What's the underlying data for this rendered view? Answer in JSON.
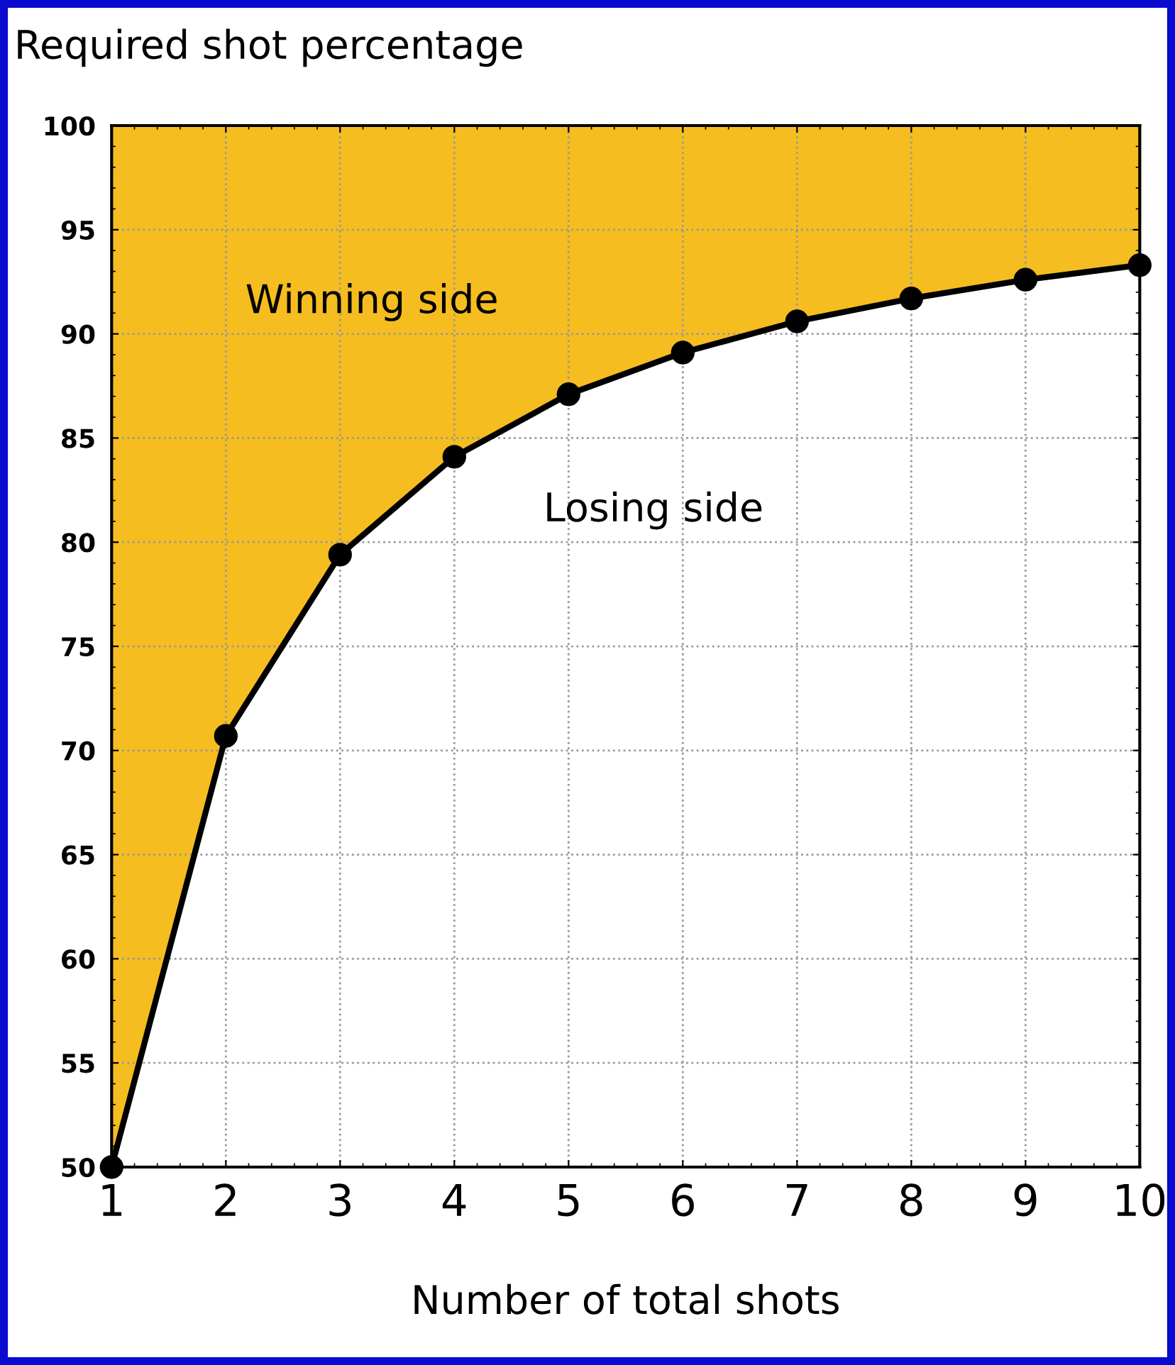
{
  "chart_data": {
    "type": "line",
    "ylabel": "Required shot percentage",
    "xlabel": "Number of total shots",
    "x": [
      1,
      2,
      3,
      4,
      5,
      6,
      7,
      8,
      9,
      10
    ],
    "series": [
      {
        "color": "#000000",
        "colors": [
          "#f5bd1f",
          "#f5bd1f",
          "#f5bd1f",
          "#f5bd1f",
          "#f5bd1f",
          "#f5bd1f",
          "#f5bd1f",
          "#f5bd1f",
          "#f5bd1f",
          "#f5bd1f"
        ],
        "marker": "circle",
        "values": [
          50.0,
          70.7,
          79.4,
          84.1,
          87.1,
          89.1,
          90.6,
          91.7,
          92.6,
          93.3
        ],
        "lower": [
          50.0,
          70.7,
          79.4,
          84.1,
          87.1,
          89.1,
          90.6,
          91.7,
          92.6,
          93.3
        ],
        "upper": [
          100,
          100,
          100,
          100,
          100,
          100,
          100,
          100,
          100,
          100
        ]
      }
    ],
    "xlim": [
      1,
      10
    ],
    "ylim": [
      50,
      100
    ],
    "xticks": [
      1,
      2,
      3,
      4,
      5,
      6,
      7,
      8,
      9,
      10
    ],
    "yticks": [
      50,
      55,
      60,
      65,
      70,
      75,
      80,
      85,
      90,
      95,
      100
    ],
    "grid": true,
    "line_style": "solid",
    "annotations": [
      "Winning side",
      "Losing side"
    ]
  }
}
